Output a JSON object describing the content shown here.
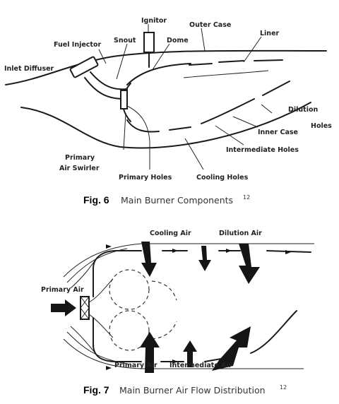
{
  "fig6": {
    "labels": {
      "ignitor": "Ignitor",
      "outer_case": "Outer Case",
      "snout": "Snout",
      "dome": "Dome",
      "fuel_injector": "Fuel Injector",
      "liner": "Liner",
      "inlet_diffuser": "Inlet Diffuser",
      "dilution_holes_1": "Dilution",
      "dilution_holes_2": "Holes",
      "inner_case": "Inner Case",
      "intermediate_holes": "Intermediate Holes",
      "primary_air_swirler_1": "Primary",
      "primary_air_swirler_2": "Air Swirler",
      "primary_holes": "Primary Holes",
      "cooling_holes": "Cooling Holes"
    },
    "caption_number": "Fig. 6",
    "caption_text": "Main Burner Components",
    "caption_ref": "12"
  },
  "fig7": {
    "labels": {
      "cooling_air": "Cooling Air",
      "dilution_air": "Dilution Air",
      "primary_air_left": "Primary Air",
      "primary_air_bottom": "Primary Air",
      "intermediate_air": "Intermediate Air"
    },
    "caption_number": "Fig. 7",
    "caption_text": "Main Burner Air Flow Distribution",
    "caption_ref": "12"
  }
}
